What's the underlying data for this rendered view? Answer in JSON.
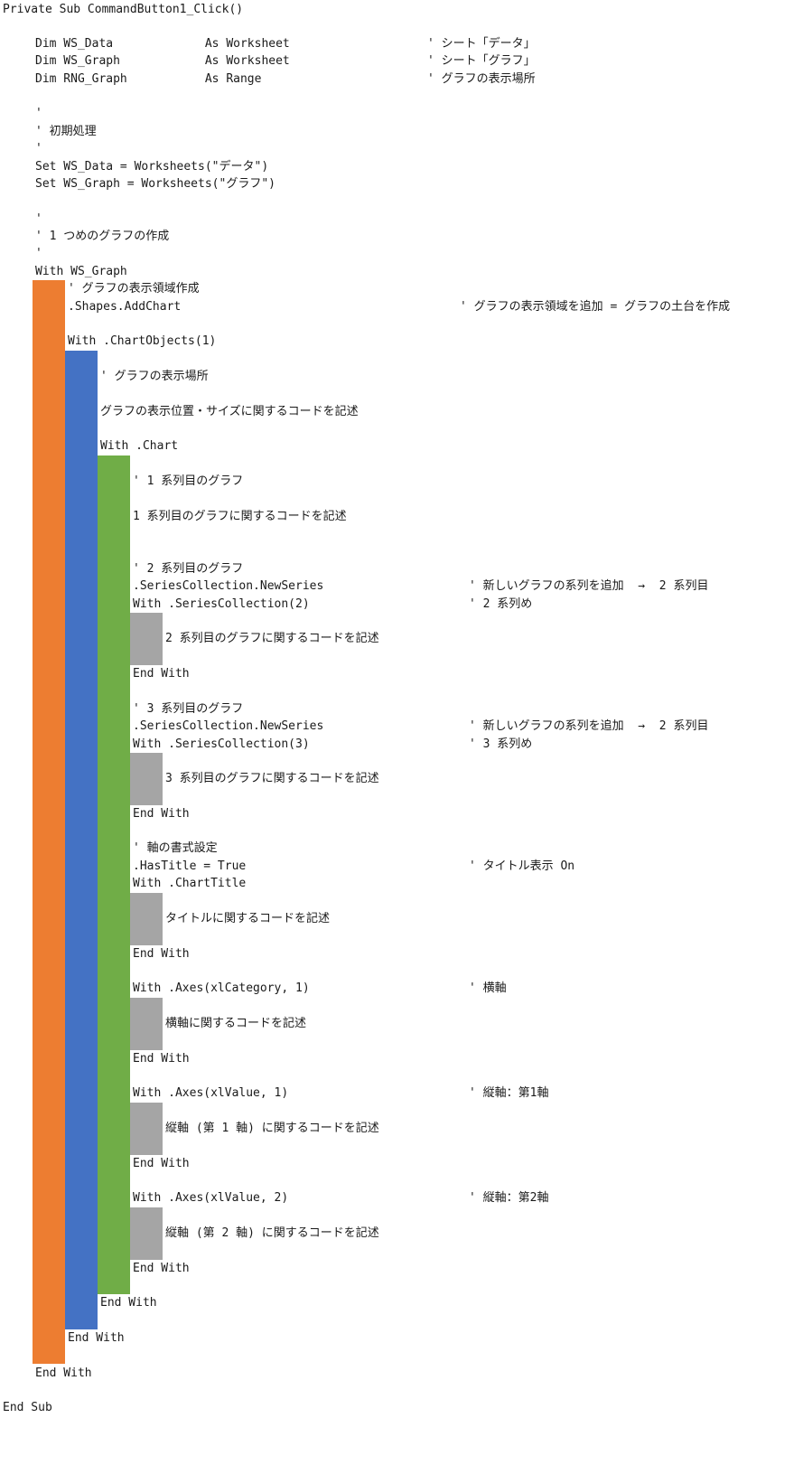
{
  "colors": {
    "level1": "#ED7D31",
    "level2": "#4472C4",
    "level3": "#70AD47",
    "level4": "#A5A5A5",
    "text": "#1a1a1a"
  },
  "lines": [
    {
      "text": "Private Sub CommandButton1_Click()"
    },
    {
      "text": "Dim WS_Data             As Worksheet",
      "comment": "' シート「データ」"
    },
    {
      "text": "Dim WS_Graph            As Worksheet",
      "comment": "' シート「グラフ」"
    },
    {
      "text": "Dim RNG_Graph           As Range",
      "comment": "' グラフの表示場所"
    },
    {
      "text": "'"
    },
    {
      "text": "' 初期処理"
    },
    {
      "text": "'"
    },
    {
      "text": "Set WS_Data = Worksheets(\"データ\")"
    },
    {
      "text": "Set WS_Graph = Worksheets(\"グラフ\")"
    },
    {
      "text": "'"
    },
    {
      "text": "' 1 つめのグラフの作成"
    },
    {
      "text": "'"
    },
    {
      "text": "With WS_Graph"
    },
    {
      "text": "' グラフの表示領域作成"
    },
    {
      "text": ".Shapes.AddChart",
      "comment": "' グラフの表示領域を追加 = グラフの土台を作成"
    },
    {
      "text": "With .ChartObjects(1)"
    },
    {
      "text": "' グラフの表示場所"
    },
    {
      "text": "グラフの表示位置・サイズに関するコードを記述"
    },
    {
      "text": "With .Chart"
    },
    {
      "text": "' 1 系列目のグラフ"
    },
    {
      "text": "1 系列目のグラフに関するコードを記述"
    },
    {
      "text": "' 2 系列目のグラフ"
    },
    {
      "text": ".SeriesCollection.NewSeries",
      "comment": "' 新しいグラフの系列を追加  →  2 系列目"
    },
    {
      "text": "With .SeriesCollection(2)",
      "comment": "' 2 系列め"
    },
    {
      "text": "2 系列目のグラフに関するコードを記述"
    },
    {
      "text": "End With"
    },
    {
      "text": "' 3 系列目のグラフ"
    },
    {
      "text": ".SeriesCollection.NewSeries",
      "comment": "' 新しいグラフの系列を追加  →  2 系列目"
    },
    {
      "text": "With .SeriesCollection(3)",
      "comment": "' 3 系列め"
    },
    {
      "text": "3 系列目のグラフに関するコードを記述"
    },
    {
      "text": "End With"
    },
    {
      "text": "' 軸の書式設定"
    },
    {
      "text": ".HasTitle = True",
      "comment": "' タイトル表示 On"
    },
    {
      "text": "With .ChartTitle"
    },
    {
      "text": "タイトルに関するコードを記述"
    },
    {
      "text": "End With"
    },
    {
      "text": "With .Axes(xlCategory, 1)",
      "comment": "' 横軸"
    },
    {
      "text": "横軸に関するコードを記述"
    },
    {
      "text": "End With"
    },
    {
      "text": "With .Axes(xlValue, 1)",
      "comment": "' 縦軸：第1軸"
    },
    {
      "text": "縦軸 (第 1 軸) に関するコードを記述"
    },
    {
      "text": "End With"
    },
    {
      "text": "With .Axes(xlValue, 2)",
      "comment": "' 縦軸：第2軸"
    },
    {
      "text": "縦軸 (第 2 軸) に関するコードを記述"
    },
    {
      "text": "End With"
    },
    {
      "text": "End With"
    },
    {
      "text": "End With"
    },
    {
      "text": "End With"
    },
    {
      "text": "End Sub"
    }
  ]
}
